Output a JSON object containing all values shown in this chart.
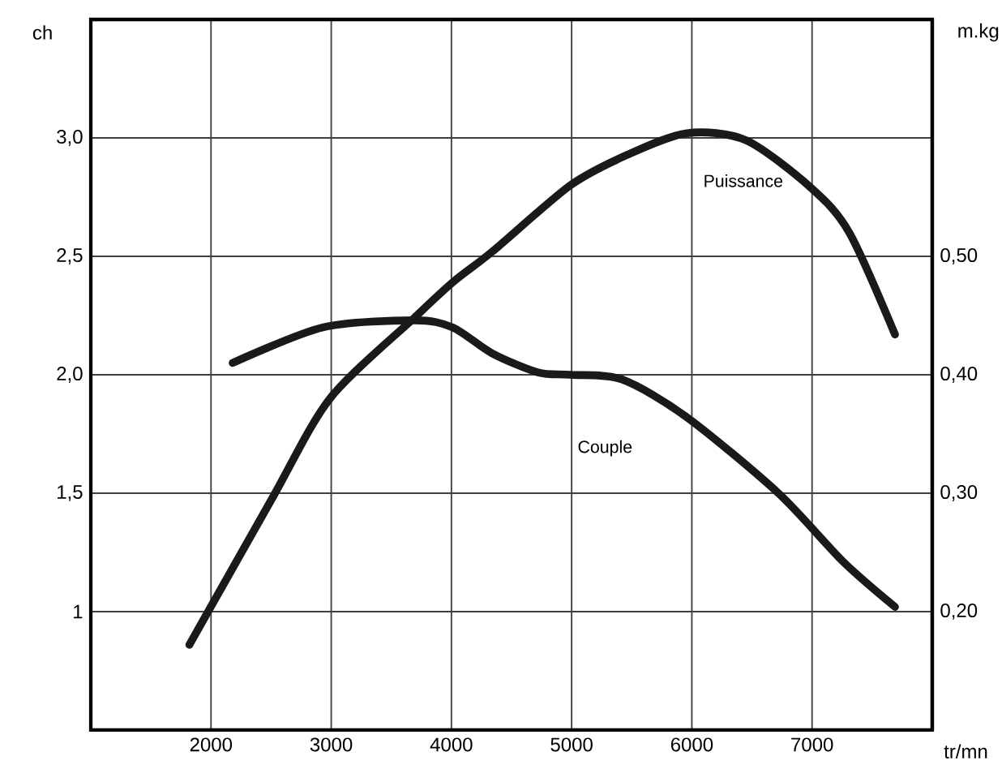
{
  "chart_data": {
    "type": "line",
    "xlabel": "tr/mn",
    "ylabel": "ch",
    "y2label": "m.kg",
    "xlim": [
      1000,
      8000
    ],
    "xticks": [
      2000,
      3000,
      4000,
      5000,
      6000,
      7000
    ],
    "ylim": [
      0.5,
      3.5
    ],
    "yticks": [
      1,
      {
        "value": 1.5,
        "label": "1,5"
      },
      {
        "value": 2.0,
        "label": "2,0"
      },
      {
        "value": 2.5,
        "label": "2,5"
      },
      {
        "value": 3.0,
        "label": "3,0"
      }
    ],
    "y2lim": [
      0.1,
      0.7
    ],
    "y2ticks": [
      {
        "value": 0.2,
        "label": "0,20"
      },
      {
        "value": 0.3,
        "label": "0,30"
      },
      {
        "value": 0.4,
        "label": "0,40"
      },
      {
        "value": 0.5,
        "label": "0,50"
      }
    ],
    "grid": true,
    "marker": "none",
    "line_style": "solid",
    "series": [
      {
        "name": "Puissance",
        "color": "#1a1a1a",
        "x": [
          1820,
          2500,
          2990,
          3690,
          4010,
          4340,
          4990,
          5470,
          5960,
          6450,
          6990,
          7310,
          7690
        ],
        "values": [
          0.86,
          1.47,
          1.9,
          2.24,
          2.39,
          2.52,
          2.8,
          2.93,
          3.02,
          2.99,
          2.79,
          2.6,
          2.17
        ]
      },
      {
        "name": "Couple",
        "color": "#1a1a1a",
        "axis": "y2",
        "x": [
          2180,
          2930,
          3690,
          4010,
          4340,
          4720,
          4990,
          5420,
          5960,
          6720,
          7260,
          7690
        ],
        "values": [
          0.41,
          0.44,
          0.446,
          0.44,
          0.418,
          0.402,
          0.4,
          0.396,
          0.364,
          0.3,
          0.242,
          0.204
        ]
      }
    ]
  }
}
